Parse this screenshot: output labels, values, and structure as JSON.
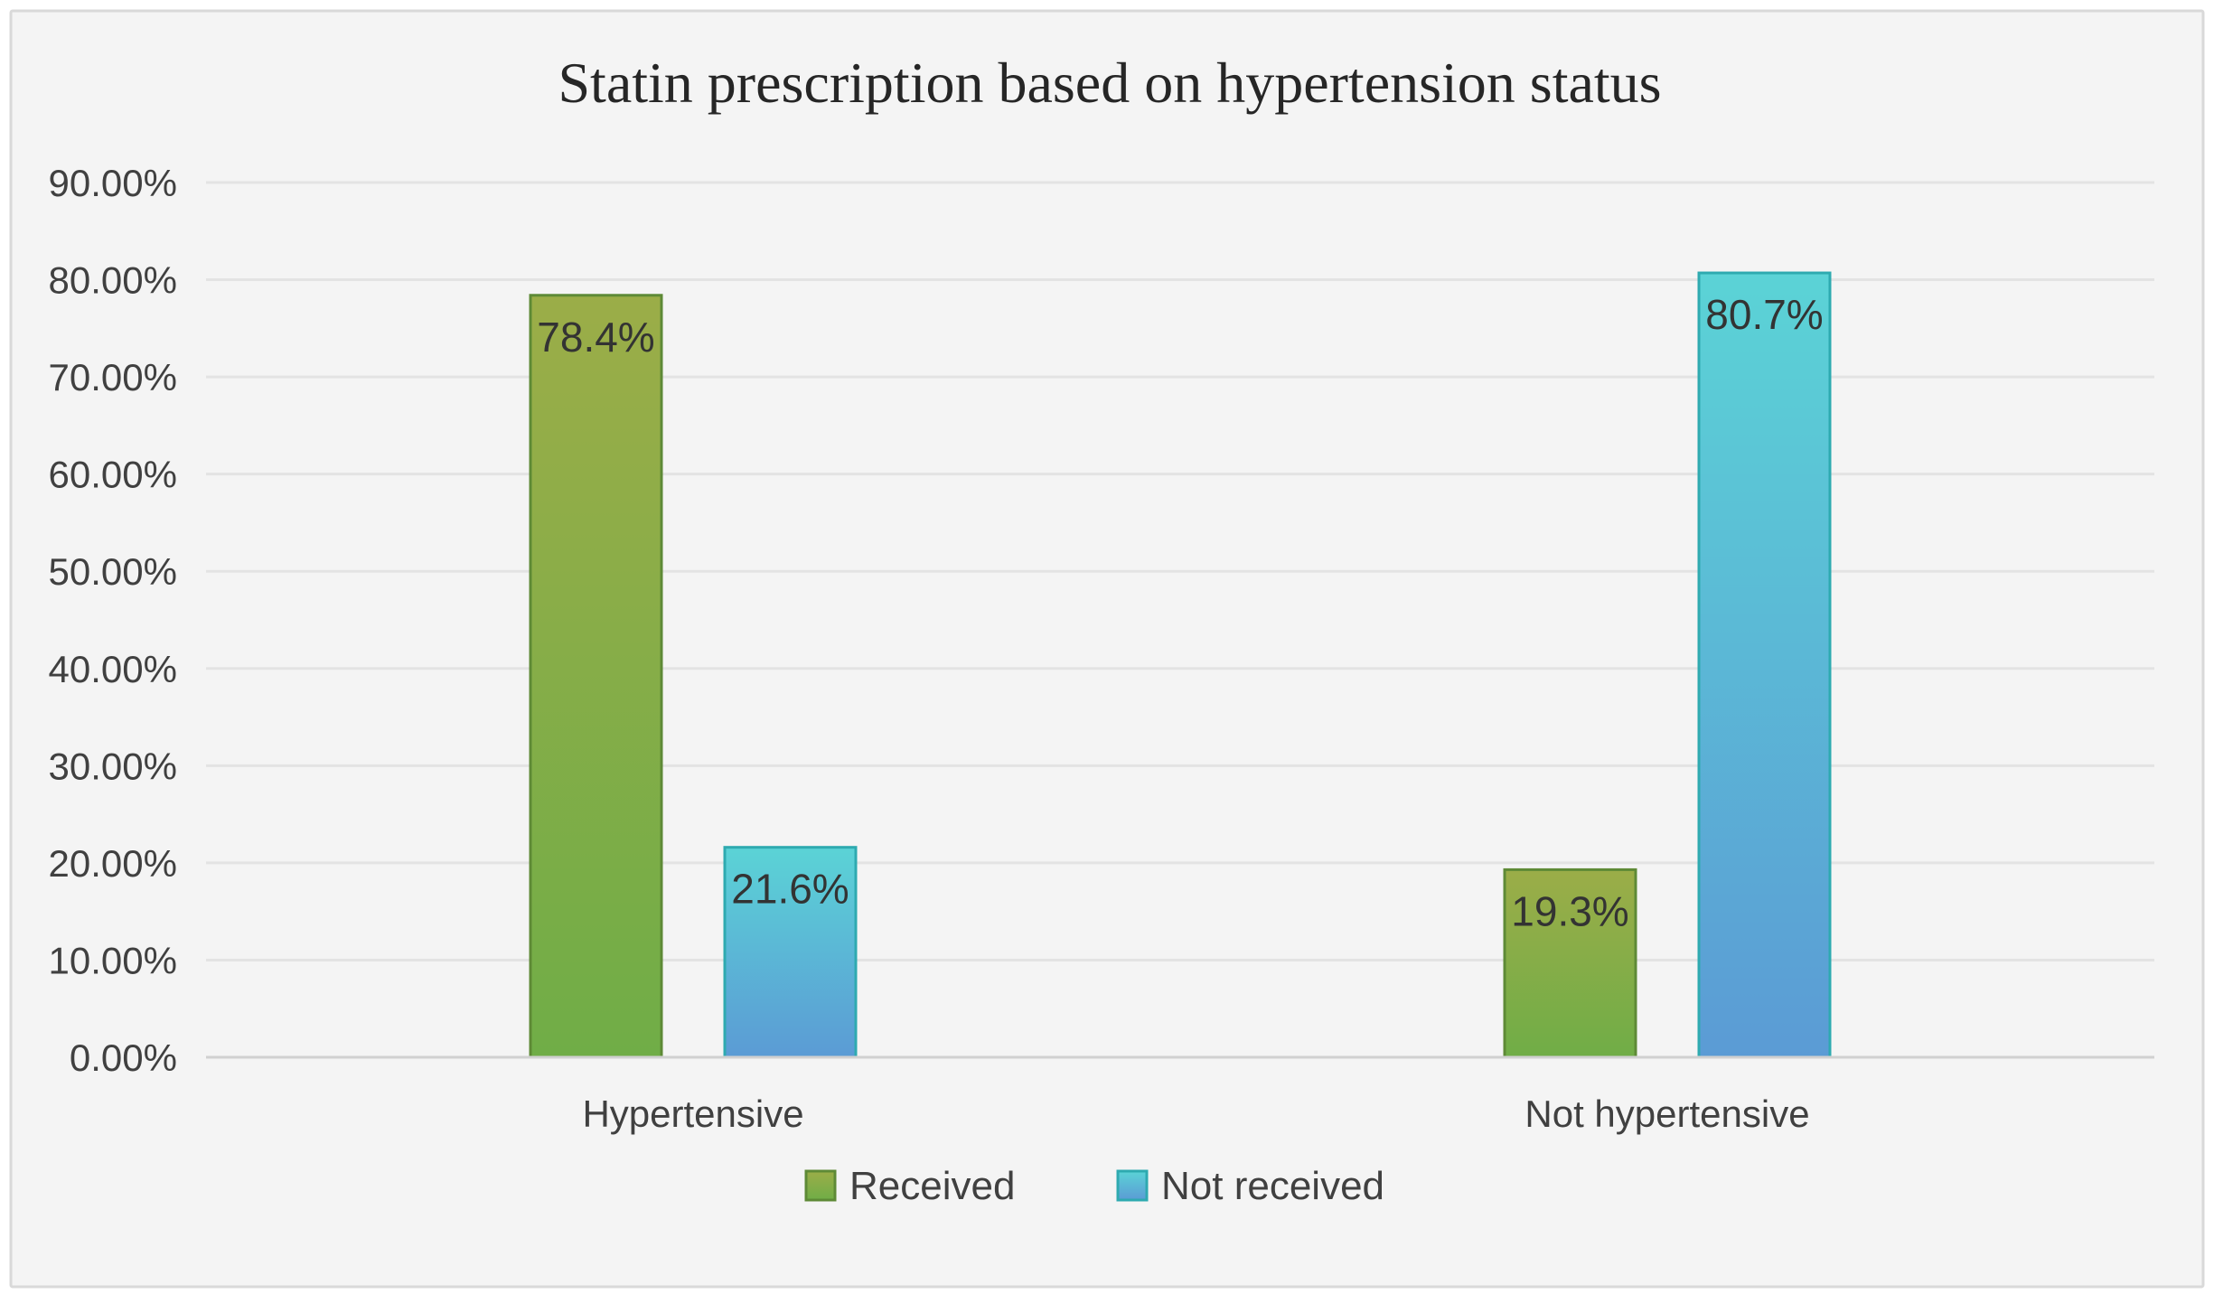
{
  "chart_data": {
    "type": "bar",
    "title": "Statin  prescription based on hypertension status",
    "categories": [
      "Hypertensive",
      "Not hypertensive"
    ],
    "series": [
      {
        "name": "Received",
        "values": [
          78.4,
          19.3
        ],
        "labels": [
          "78.4%",
          "19.3%"
        ],
        "color_top": "#9bad48",
        "color_bottom": "#70ad47",
        "border": "#5e8a36"
      },
      {
        "name": "Not received",
        "values": [
          21.6,
          80.7
        ],
        "labels": [
          "21.6%",
          "80.7%"
        ],
        "color_top": "#5bd3d6",
        "color_bottom": "#5b9bd5",
        "border": "#2eaab0"
      }
    ],
    "y_ticks": [
      0,
      10,
      20,
      30,
      40,
      50,
      60,
      70,
      80,
      90
    ],
    "y_tick_labels": [
      "0.00%",
      "10.00%",
      "20.00%",
      "30.00%",
      "40.00%",
      "50.00%",
      "60.00%",
      "70.00%",
      "80.00%",
      "90.00%"
    ],
    "ylim": [
      0,
      90
    ],
    "xlabel": "",
    "ylabel": "",
    "grid": true,
    "legend_position": "bottom",
    "background": "#f4f4f4",
    "frame_color": "#d9d9d9",
    "grid_color": "#e3e3e3",
    "axis_color": "#d0d0d0"
  }
}
